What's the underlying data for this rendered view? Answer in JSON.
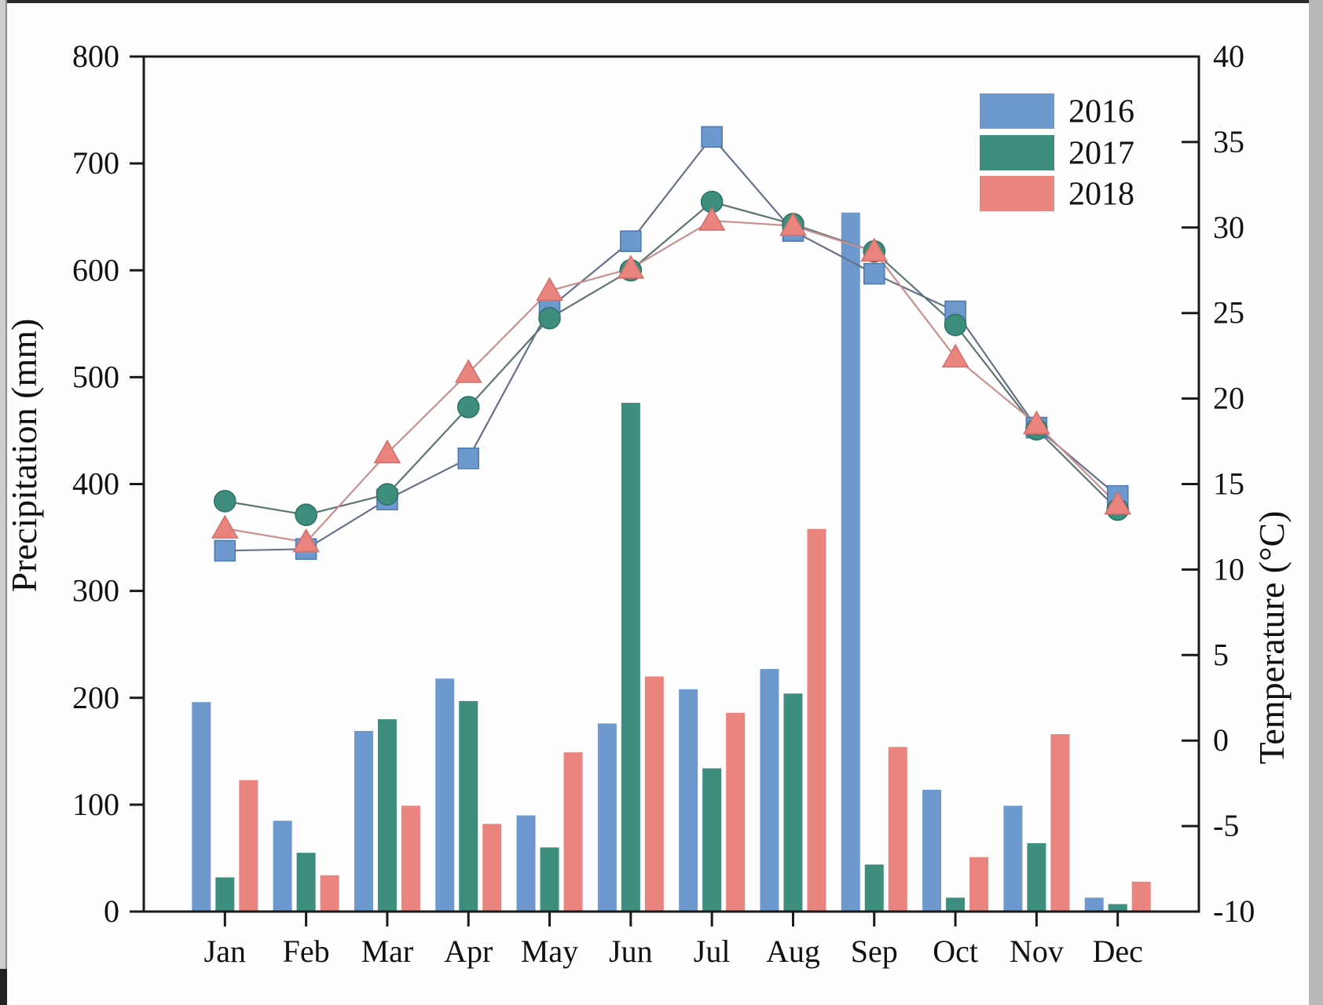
{
  "chart_data": {
    "type": "combo-bar-line",
    "categories": [
      "Jan",
      "Feb",
      "Mar",
      "Apr",
      "May",
      "Jun",
      "Jul",
      "Aug",
      "Sep",
      "Oct",
      "Nov",
      "Dec"
    ],
    "legend": {
      "position": "top-right-inside",
      "entries": [
        {
          "label": "2016",
          "color": "#6d99cf"
        },
        {
          "label": "2017",
          "color": "#3e8e7e"
        },
        {
          "label": "2018",
          "color": "#e9847f"
        }
      ]
    },
    "precipitation": {
      "axis_title": "Precipitation (mm)",
      "axis_side": "left",
      "ylim": [
        0,
        800
      ],
      "tick_step": 100,
      "tick_labels": [
        "0",
        "100",
        "200",
        "300",
        "400",
        "500",
        "600",
        "700",
        "800"
      ],
      "bar_series": [
        {
          "name": "2016",
          "color": "#6d99cf",
          "values": [
            196,
            85,
            169,
            218,
            90,
            176,
            208,
            227,
            654,
            114,
            99,
            13
          ]
        },
        {
          "name": "2017",
          "color": "#3e8e7e",
          "values": [
            32,
            55,
            180,
            197,
            60,
            476,
            134,
            204,
            44,
            13,
            64,
            7
          ]
        },
        {
          "name": "2018",
          "color": "#e9847f",
          "values": [
            123,
            34,
            99,
            82,
            149,
            220,
            186,
            358,
            154,
            51,
            166,
            28
          ]
        }
      ]
    },
    "temperature": {
      "axis_title": "Temperature (°C)",
      "axis_side": "right",
      "ylim": [
        -10,
        40
      ],
      "tick_step": 5,
      "tick_labels": [
        "-10",
        "-5",
        "0",
        "5",
        "10",
        "15",
        "20",
        "25",
        "30",
        "35",
        "40"
      ],
      "line_series": [
        {
          "name": "2016",
          "marker": "square",
          "marker_color": "#6d99cf",
          "marker_edge": "#4e7cb0",
          "line_color": "#66718a",
          "values": [
            11.1,
            11.2,
            14.1,
            16.5,
            25.3,
            29.2,
            35.3,
            29.8,
            27.3,
            25.1,
            18.3,
            14.3
          ]
        },
        {
          "name": "2017",
          "marker": "circle",
          "marker_color": "#3e8e7e",
          "marker_edge": "#2e7265",
          "line_color": "#5c7572",
          "values": [
            14.0,
            13.2,
            14.4,
            19.5,
            24.7,
            27.5,
            31.5,
            30.2,
            28.6,
            24.3,
            18.2,
            13.5
          ]
        },
        {
          "name": "2018",
          "marker": "triangle",
          "marker_color": "#e9847f",
          "marker_edge": "#d4706c",
          "line_color": "#c9908f",
          "values": [
            12.4,
            11.6,
            16.8,
            21.5,
            26.3,
            27.6,
            30.4,
            30.1,
            28.6,
            22.4,
            18.5,
            13.8
          ]
        }
      ]
    },
    "frame_color": "#1a1a1a",
    "grid": "off"
  }
}
